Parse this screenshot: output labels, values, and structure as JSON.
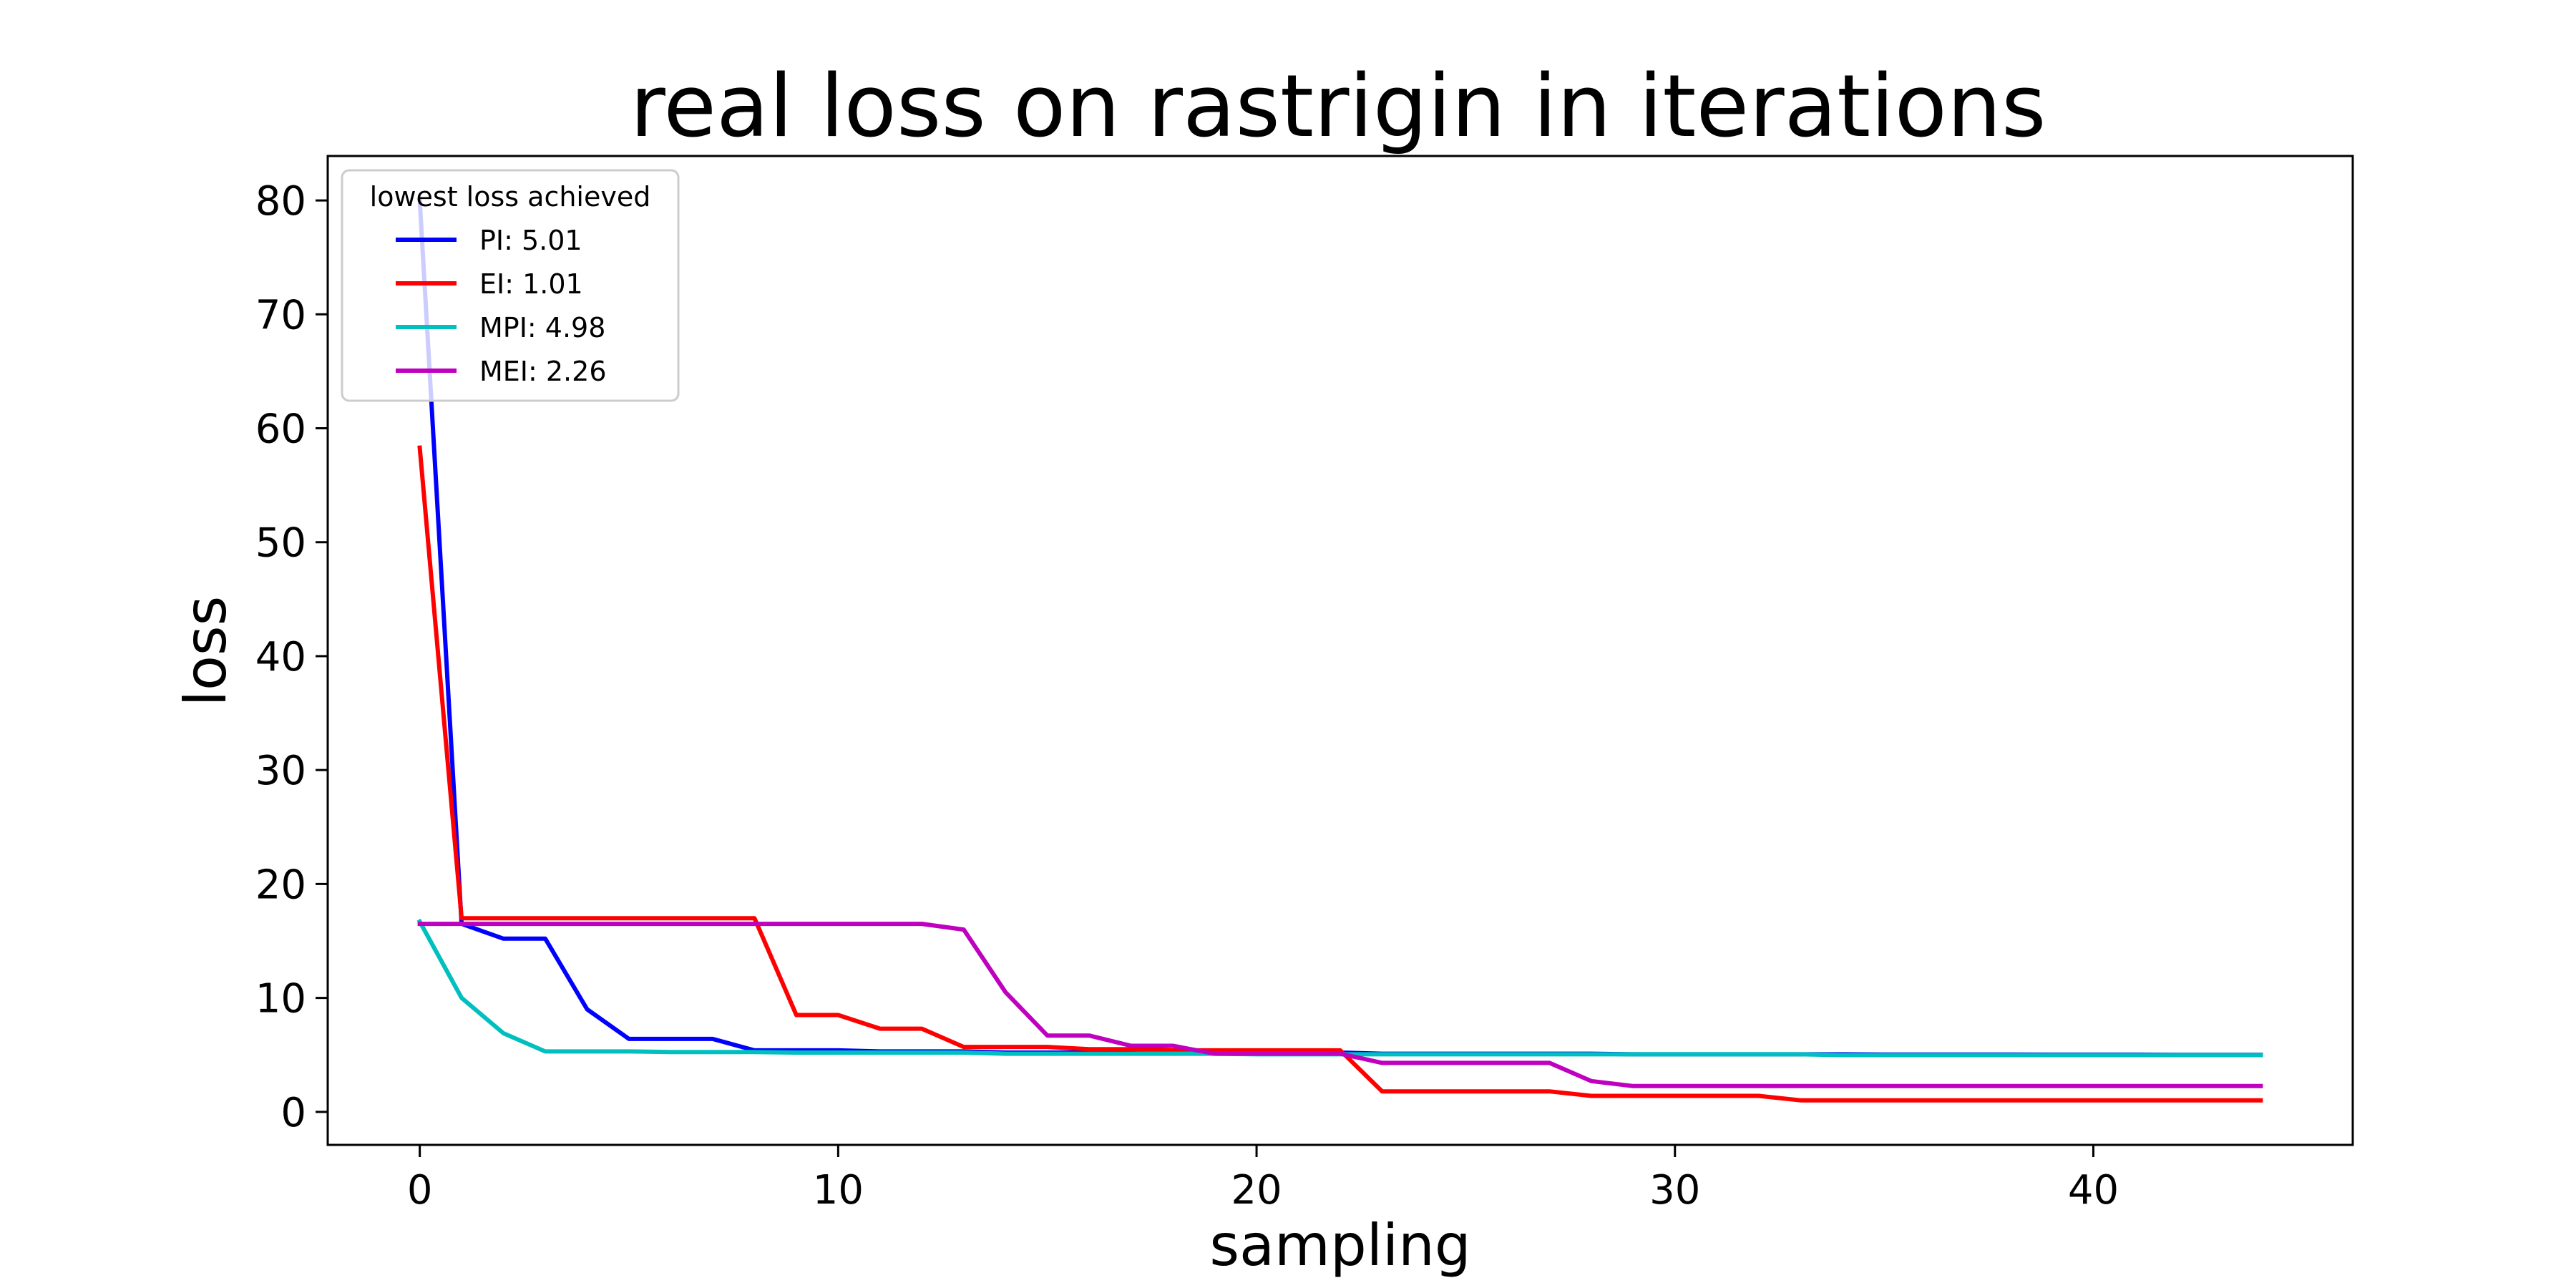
{
  "chart_data": {
    "type": "line",
    "title": "real loss on rastrigin in iterations",
    "xlabel": "sampling",
    "ylabel": "loss",
    "xlim": [
      -2.2,
      46.2
    ],
    "ylim": [
      -2.9,
      83.9
    ],
    "xticks": [
      0,
      10,
      20,
      30,
      40
    ],
    "yticks": [
      0,
      10,
      20,
      30,
      40,
      50,
      60,
      70,
      80
    ],
    "grid": false,
    "legend": {
      "title": "lowest loss achieved",
      "placement": "top-left"
    },
    "series": [
      {
        "name": "PI: 5.01",
        "color": "#0000ff",
        "x": [
          0,
          1,
          2,
          3,
          4,
          5,
          6,
          7,
          8,
          9,
          10,
          11,
          12,
          13,
          14,
          15,
          16,
          17,
          18,
          19,
          20,
          21,
          22,
          23,
          24,
          25,
          26,
          27,
          28,
          29,
          30,
          31,
          32,
          33,
          34,
          35,
          36,
          37,
          38,
          39,
          40,
          41,
          42,
          43,
          44
        ],
        "y": [
          80,
          16.5,
          15.2,
          15.2,
          9,
          6.4,
          6.4,
          6.4,
          5.4,
          5.4,
          5.4,
          5.3,
          5.3,
          5.3,
          5.2,
          5.2,
          5.2,
          5.2,
          5.2,
          5.2,
          5.2,
          5.2,
          5.2,
          5.1,
          5.1,
          5.1,
          5.1,
          5.1,
          5.1,
          5.05,
          5.05,
          5.05,
          5.05,
          5.05,
          5.05,
          5.03,
          5.03,
          5.03,
          5.03,
          5.02,
          5.02,
          5.02,
          5.01,
          5.01,
          5.01
        ]
      },
      {
        "name": "EI: 1.01",
        "color": "#ff0000",
        "x": [
          0,
          1,
          2,
          3,
          4,
          5,
          6,
          7,
          8,
          9,
          10,
          11,
          12,
          13,
          14,
          15,
          16,
          17,
          18,
          19,
          20,
          21,
          22,
          23,
          24,
          25,
          26,
          27,
          28,
          29,
          30,
          31,
          32,
          33,
          34,
          35,
          36,
          37,
          38,
          39,
          40,
          41,
          42,
          43,
          44
        ],
        "y": [
          58.3,
          17,
          17,
          17,
          17,
          17,
          17,
          17,
          17,
          8.5,
          8.5,
          7.3,
          7.3,
          5.7,
          5.7,
          5.7,
          5.5,
          5.5,
          5.4,
          5.4,
          5.4,
          5.4,
          5.4,
          1.8,
          1.8,
          1.8,
          1.8,
          1.8,
          1.4,
          1.4,
          1.4,
          1.4,
          1.4,
          1.01,
          1.01,
          1.01,
          1.01,
          1.01,
          1.01,
          1.01,
          1.01,
          1.01,
          1.01,
          1.01,
          1.01
        ]
      },
      {
        "name": "MPI: 4.98",
        "color": "#00bfbf",
        "x": [
          0,
          1,
          2,
          3,
          4,
          5,
          6,
          7,
          8,
          9,
          10,
          11,
          12,
          13,
          14,
          15,
          16,
          17,
          18,
          19,
          20,
          21,
          22,
          23,
          24,
          25,
          26,
          27,
          28,
          29,
          30,
          31,
          32,
          33,
          34,
          35,
          36,
          37,
          38,
          39,
          40,
          41,
          42,
          43,
          44
        ],
        "y": [
          16.7,
          10,
          6.9,
          5.3,
          5.3,
          5.3,
          5.25,
          5.25,
          5.25,
          5.2,
          5.2,
          5.2,
          5.2,
          5.2,
          5.1,
          5.1,
          5.1,
          5.1,
          5.1,
          5.1,
          5.05,
          5.05,
          5.05,
          5.05,
          5.05,
          5.05,
          5.05,
          5.05,
          5.05,
          5.05,
          5.05,
          5.05,
          5.05,
          5.05,
          4.98,
          4.98,
          4.98,
          4.98,
          4.98,
          4.98,
          4.98,
          4.98,
          4.98,
          4.98,
          4.98
        ]
      },
      {
        "name": "MEI: 2.26",
        "color": "#bf00bf",
        "x": [
          0,
          1,
          2,
          3,
          4,
          5,
          6,
          7,
          8,
          9,
          10,
          11,
          12,
          13,
          14,
          15,
          16,
          17,
          18,
          19,
          20,
          21,
          22,
          23,
          24,
          25,
          26,
          27,
          28,
          29,
          30,
          31,
          32,
          33,
          34,
          35,
          36,
          37,
          38,
          39,
          40,
          41,
          42,
          43,
          44
        ],
        "y": [
          16.5,
          16.5,
          16.5,
          16.5,
          16.5,
          16.5,
          16.5,
          16.5,
          16.5,
          16.5,
          16.5,
          16.5,
          16.5,
          16,
          10.5,
          6.7,
          6.7,
          5.8,
          5.8,
          5.1,
          5.1,
          5.1,
          5.1,
          4.3,
          4.3,
          4.3,
          4.3,
          4.3,
          2.7,
          2.26,
          2.26,
          2.26,
          2.26,
          2.26,
          2.26,
          2.26,
          2.26,
          2.26,
          2.26,
          2.26,
          2.26,
          2.26,
          2.26,
          2.26,
          2.26
        ]
      }
    ]
  }
}
